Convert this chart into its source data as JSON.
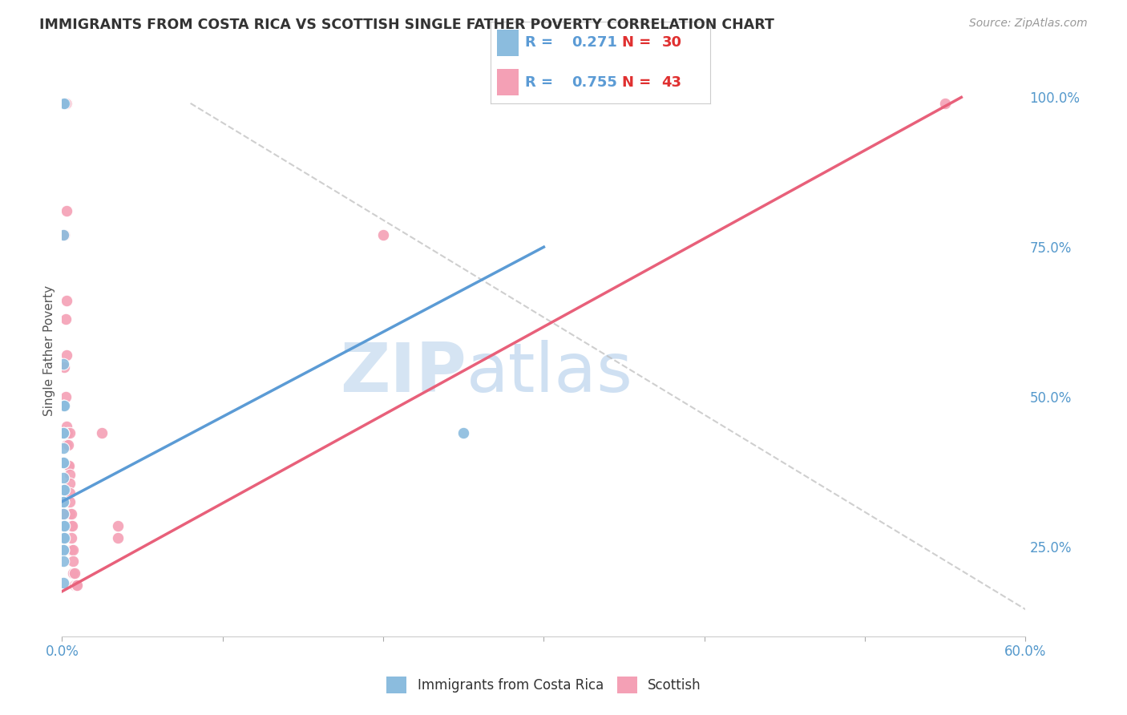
{
  "title": "IMMIGRANTS FROM COSTA RICA VS SCOTTISH SINGLE FATHER POVERTY CORRELATION CHART",
  "source": "Source: ZipAtlas.com",
  "ylabel": "Single Father Poverty",
  "legend_blue_R": "0.271",
  "legend_blue_N": "30",
  "legend_pink_R": "0.755",
  "legend_pink_N": "43",
  "watermark_ZIP": "ZIP",
  "watermark_atlas": "atlas",
  "blue_color": "#8BBCDE",
  "pink_color": "#F4A0B5",
  "blue_line_color": "#5B9BD5",
  "pink_line_color": "#E8607A",
  "diag_line_color": "#BBBBBB",
  "blue_scatter": [
    [
      0.0008,
      0.99
    ],
    [
      0.0012,
      0.99
    ],
    [
      0.0008,
      0.77
    ],
    [
      0.0008,
      0.555
    ],
    [
      0.0008,
      0.485
    ],
    [
      0.001,
      0.485
    ],
    [
      0.0012,
      0.485
    ],
    [
      0.0008,
      0.44
    ],
    [
      0.001,
      0.44
    ],
    [
      0.0008,
      0.415
    ],
    [
      0.0008,
      0.39
    ],
    [
      0.001,
      0.39
    ],
    [
      0.0008,
      0.365
    ],
    [
      0.0008,
      0.345
    ],
    [
      0.001,
      0.345
    ],
    [
      0.0014,
      0.345
    ],
    [
      0.0008,
      0.325
    ],
    [
      0.001,
      0.325
    ],
    [
      0.001,
      0.305
    ],
    [
      0.0008,
      0.285
    ],
    [
      0.001,
      0.285
    ],
    [
      0.0012,
      0.285
    ],
    [
      0.0008,
      0.265
    ],
    [
      0.001,
      0.265
    ],
    [
      0.0014,
      0.265
    ],
    [
      0.0008,
      0.245
    ],
    [
      0.001,
      0.245
    ],
    [
      0.0008,
      0.225
    ],
    [
      0.0008,
      0.19
    ],
    [
      0.25,
      0.44
    ]
  ],
  "pink_scatter": [
    [
      0.0008,
      0.99
    ],
    [
      0.0015,
      0.99
    ],
    [
      0.0022,
      0.99
    ],
    [
      0.003,
      0.99
    ],
    [
      0.0022,
      0.99
    ],
    [
      0.003,
      0.81
    ],
    [
      0.0015,
      0.77
    ],
    [
      0.003,
      0.66
    ],
    [
      0.0022,
      0.63
    ],
    [
      0.003,
      0.57
    ],
    [
      0.0015,
      0.55
    ],
    [
      0.0022,
      0.5
    ],
    [
      0.003,
      0.45
    ],
    [
      0.0035,
      0.44
    ],
    [
      0.003,
      0.42
    ],
    [
      0.004,
      0.42
    ],
    [
      0.004,
      0.385
    ],
    [
      0.0045,
      0.385
    ],
    [
      0.005,
      0.37
    ],
    [
      0.005,
      0.355
    ],
    [
      0.005,
      0.34
    ],
    [
      0.005,
      0.325
    ],
    [
      0.005,
      0.305
    ],
    [
      0.006,
      0.305
    ],
    [
      0.006,
      0.285
    ],
    [
      0.0065,
      0.285
    ],
    [
      0.006,
      0.265
    ],
    [
      0.006,
      0.245
    ],
    [
      0.007,
      0.245
    ],
    [
      0.007,
      0.225
    ],
    [
      0.007,
      0.205
    ],
    [
      0.008,
      0.205
    ],
    [
      0.008,
      0.185
    ],
    [
      0.009,
      0.185
    ],
    [
      0.0095,
      0.185
    ],
    [
      0.0008,
      0.305
    ],
    [
      0.0008,
      0.265
    ],
    [
      0.55,
      0.99
    ],
    [
      0.2,
      0.77
    ],
    [
      0.005,
      0.44
    ],
    [
      0.025,
      0.44
    ],
    [
      0.035,
      0.265
    ],
    [
      0.035,
      0.285
    ]
  ],
  "blue_line_x": [
    0.0,
    0.3
  ],
  "blue_line_y": [
    0.325,
    0.75
  ],
  "pink_line_x": [
    0.0,
    0.56
  ],
  "pink_line_y": [
    0.175,
    1.0
  ],
  "diag_line_x": [
    0.08,
    0.6
  ],
  "diag_line_y": [
    0.99,
    0.145
  ],
  "xmin": 0.0,
  "xmax": 0.6,
  "ymin": 0.1,
  "ymax": 1.055,
  "xtick_positions": [
    0.0,
    0.1,
    0.2,
    0.3,
    0.4,
    0.5,
    0.6
  ],
  "ytick_positions": [
    0.25,
    0.5,
    0.75,
    1.0
  ],
  "ytick_labels": [
    "25.0%",
    "50.0%",
    "75.0%",
    "100.0%"
  ],
  "tick_color": "#5599CC",
  "title_color": "#333333",
  "label_color": "#555555",
  "grid_color": "#DDDDDD",
  "background_color": "#FFFFFF"
}
